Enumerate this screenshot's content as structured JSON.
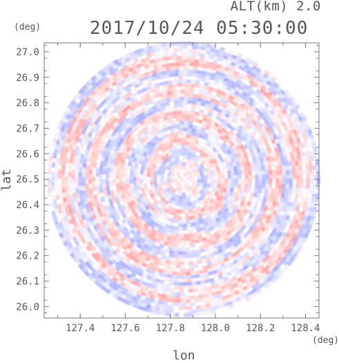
{
  "header": {
    "altitude_label": "ALT(km) 2.0",
    "datetime": "2017/10/24 05:30:00"
  },
  "axes": {
    "x_label": "lon",
    "y_label": "lat",
    "x_unit": "(deg)",
    "y_unit": "(deg)",
    "x_ticks": [
      "127.4",
      "127.6",
      "127.8",
      "128.0",
      "128.2",
      "128.4"
    ],
    "y_ticks": [
      "27.0",
      "26.9",
      "26.8",
      "26.7",
      "26.6",
      "26.5",
      "26.4",
      "26.3",
      "26.2",
      "26.1",
      "26.0"
    ]
  },
  "map": {
    "x_range": [
      127.24,
      128.46
    ],
    "y_range": [
      25.955,
      27.035
    ],
    "center": [
      127.86,
      26.5
    ],
    "radius_deg_lon": 0.605,
    "radius_deg_lat": 0.54,
    "colors": {
      "positive": "#ff9a9a",
      "negative": "#9ea5ff",
      "frame": "#777777",
      "text": "#555555"
    }
  }
}
